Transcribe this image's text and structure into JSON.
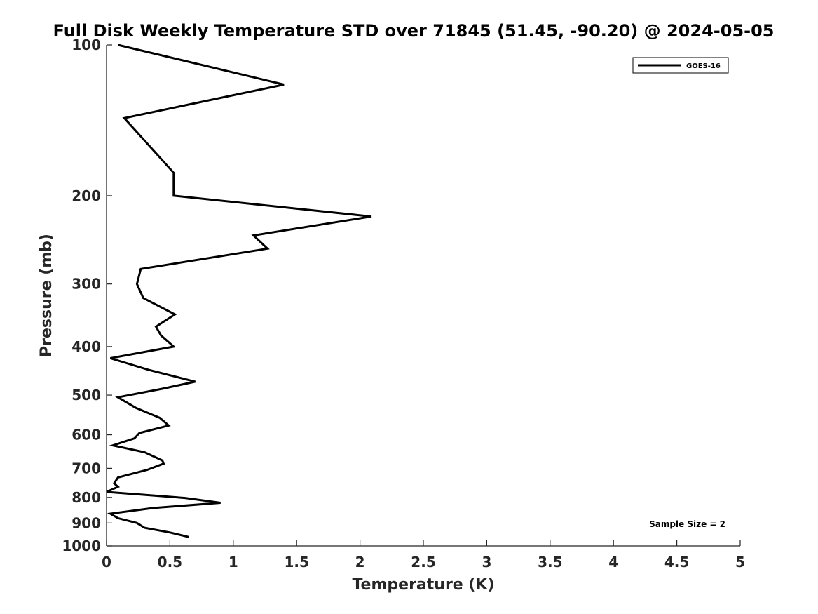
{
  "chart_data": {
    "type": "line",
    "title": "Full Disk Weekly Temperature STD over 71845 (51.45, -90.20) @ 2024-05-05",
    "xlabel": "Temperature (K)",
    "ylabel": "Pressure (mb)",
    "xlim": [
      0,
      5
    ],
    "ylim": [
      100,
      1000
    ],
    "y_scale": "log",
    "y_reversed": true,
    "x_ticks": [
      0,
      0.5,
      1,
      1.5,
      2,
      2.5,
      3,
      3.5,
      4,
      4.5,
      5
    ],
    "x_tick_labels": [
      "0",
      "0.5",
      "1",
      "1.5",
      "2",
      "2.5",
      "3",
      "3.5",
      "4",
      "4.5",
      "5"
    ],
    "y_ticks": [
      100,
      200,
      300,
      400,
      500,
      600,
      700,
      800,
      900,
      1000
    ],
    "y_tick_labels": [
      "100",
      "200",
      "300",
      "400",
      "500",
      "600",
      "700",
      "800",
      "900",
      "1000"
    ],
    "grid": false,
    "legend_position": "top-right",
    "annotation": "Sample Size = 2",
    "series": [
      {
        "name": "GOES-16",
        "color": "#000000",
        "points": [
          [
            0.09,
            100
          ],
          [
            1.4,
            120
          ],
          [
            0.14,
            140
          ],
          [
            0.53,
            180
          ],
          [
            0.53,
            200
          ],
          [
            2.09,
            220
          ],
          [
            1.16,
            240
          ],
          [
            1.27,
            255
          ],
          [
            0.27,
            280
          ],
          [
            0.24,
            300
          ],
          [
            0.29,
            320
          ],
          [
            0.54,
            345
          ],
          [
            0.39,
            365
          ],
          [
            0.43,
            380
          ],
          [
            0.53,
            400
          ],
          [
            0.03,
            422
          ],
          [
            0.33,
            445
          ],
          [
            0.7,
            470
          ],
          [
            0.45,
            485
          ],
          [
            0.09,
            505
          ],
          [
            0.23,
            530
          ],
          [
            0.42,
            555
          ],
          [
            0.49,
            575
          ],
          [
            0.26,
            595
          ],
          [
            0.22,
            610
          ],
          [
            0.05,
            630
          ],
          [
            0.3,
            650
          ],
          [
            0.44,
            675
          ],
          [
            0.45,
            685
          ],
          [
            0.32,
            705
          ],
          [
            0.09,
            730
          ],
          [
            0.06,
            750
          ],
          [
            0.09,
            762
          ],
          [
            0.0,
            780
          ],
          [
            0.62,
            802
          ],
          [
            0.9,
            820
          ],
          [
            0.37,
            840
          ],
          [
            0.03,
            862
          ],
          [
            0.09,
            880
          ],
          [
            0.24,
            900
          ],
          [
            0.3,
            920
          ],
          [
            0.5,
            940
          ],
          [
            0.65,
            960
          ]
        ]
      }
    ]
  }
}
